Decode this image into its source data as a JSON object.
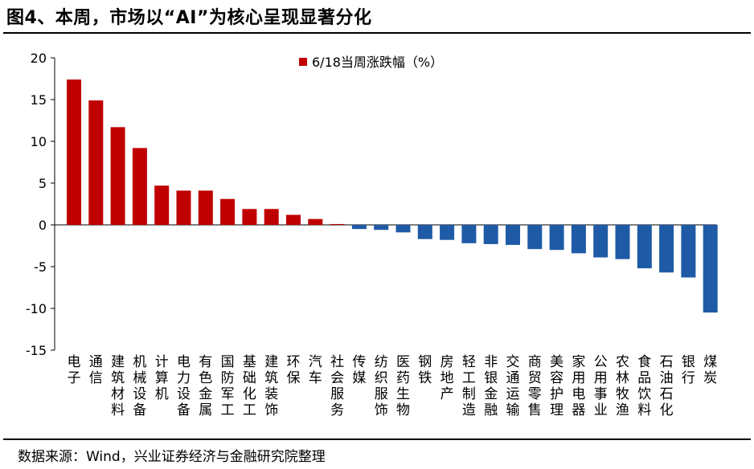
{
  "title": "图4、本周，市场以“AI”为核心呈现显著分化",
  "source": "数据来源：Wind，兴业证券经济与金融研究院整理",
  "colors": {
    "positive": "#C00000",
    "negative": "#1F5AA6",
    "axis": "#000000"
  },
  "chart_data": {
    "type": "bar",
    "legend_position": "top",
    "grid": false,
    "ylim": [
      -15,
      20
    ],
    "yticks": [
      20,
      15,
      10,
      5,
      0,
      -5,
      -10,
      -15
    ],
    "xlabel": "",
    "ylabel": "",
    "categories": [
      "电子",
      "通信",
      "建筑材料",
      "机械设备",
      "计算机",
      "电力设备",
      "有色金属",
      "国防军工",
      "基础化工",
      "建筑装饰",
      "环保",
      "汽车",
      "社会服务",
      "传媒",
      "纺织服饰",
      "医药生物",
      "钢铁",
      "房地产",
      "轻工制造",
      "非银金融",
      "交通运输",
      "商贸零售",
      "美容护理",
      "家用电器",
      "公用事业",
      "农林牧渔",
      "食品饮料",
      "石油石化",
      "银行",
      "煤炭"
    ],
    "series": [
      {
        "name": "6/18当周涨跌幅（%）",
        "values": [
          17.4,
          14.9,
          11.7,
          9.2,
          4.7,
          4.1,
          4.1,
          3.1,
          1.9,
          1.9,
          1.2,
          0.7,
          0.1,
          -0.5,
          -0.6,
          -0.9,
          -1.7,
          -1.8,
          -2.2,
          -2.3,
          -2.4,
          -2.9,
          -3.0,
          -3.4,
          -3.9,
          -4.1,
          -5.2,
          -5.7,
          -6.3,
          -10.5
        ]
      }
    ]
  }
}
